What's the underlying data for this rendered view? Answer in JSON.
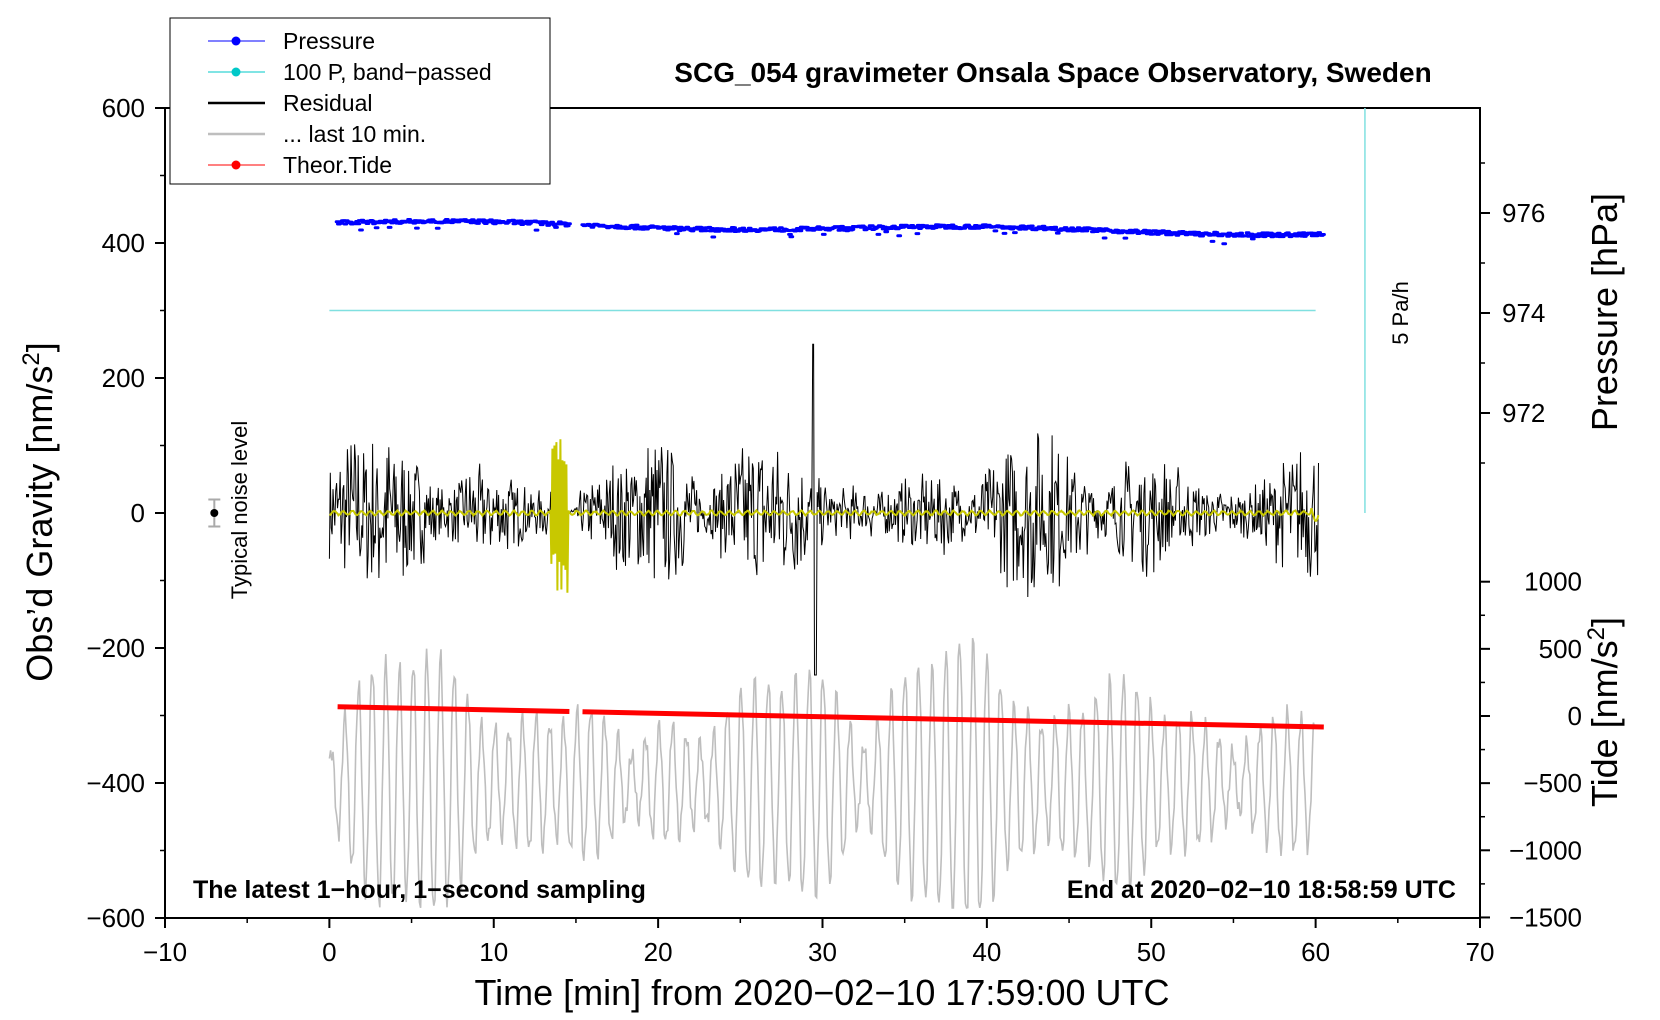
{
  "chart_data": {
    "type": "line",
    "title": "SCG_054 gravimeter Onsala Space Observatory, Sweden",
    "xlabel": "Time [min] from 2020−02−10 17:59:00 UTC",
    "ylabel_left": "Obs’d Gravity [nm/s",
    "ylabel_left_sup": "2",
    "ylabel_left_end": "]",
    "ylabel_right_pressure": "Pressure [hPa]",
    "ylabel_right_tide": "Tide [nm/s",
    "ylabel_right_tide_sup": "2",
    "ylabel_right_tide_end": "]",
    "xlim": [
      -10,
      70
    ],
    "ylim": [
      -600,
      600
    ],
    "pressure_axis": {
      "ticks": [
        976,
        974,
        972
      ]
    },
    "tide_axis": {
      "ticks": [
        1000,
        500,
        0,
        -500,
        -1000,
        -1500
      ]
    },
    "x_ticks": [
      -10,
      0,
      10,
      20,
      30,
      40,
      50,
      60,
      70
    ],
    "x_tick_labels": [
      "−10",
      "0",
      "10",
      "20",
      "30",
      "40",
      "50",
      "60",
      "70"
    ],
    "y_ticks": [
      600,
      400,
      200,
      0,
      -200,
      -400,
      -600
    ],
    "y_tick_labels": [
      "600",
      "400",
      "200",
      "0",
      "−200",
      "−400",
      "−600"
    ],
    "pressure_tick_labels": [
      "976",
      "974",
      "972"
    ],
    "tide_tick_labels": [
      "1000",
      "500",
      "0",
      "−500",
      "−1000",
      "−1500"
    ],
    "legend": [
      {
        "label": "Pressure",
        "color": "#0000ff",
        "marker": "dot"
      },
      {
        "label": "100 P, band−passed",
        "color": "#00c8c8",
        "marker": "dot"
      },
      {
        "label": "Residual",
        "color": "#000000",
        "marker": "line"
      },
      {
        "label": "... last 10 min.",
        "color": "#bebebe",
        "marker": "line"
      },
      {
        "label": "Theor.Tide",
        "color": "#ff0000",
        "marker": "dot"
      }
    ],
    "series": [
      {
        "name": "Pressure",
        "color": "#0000ff",
        "x_range": [
          0.5,
          60.5
        ],
        "gap": [
          14.6,
          15.4
        ],
        "y_start": 430,
        "y_end": 415
      },
      {
        "name": "100 P, band-passed",
        "color": "#80e0e0",
        "x_range": [
          0,
          60
        ],
        "y": 300
      },
      {
        "name": "Residual",
        "color": "#000000",
        "x_range": [
          0,
          60.2
        ],
        "amplitude_typical": 130
      },
      {
        "name": "Residual smoothed",
        "color": "#c8c800",
        "x_range": [
          0,
          60.2
        ],
        "spike_at": [
          13.5,
          14.5
        ]
      },
      {
        "name": "Theor.Tide",
        "color": "#ff0000",
        "x_range": [
          0.5,
          60.5
        ],
        "gap": [
          14.6,
          15.4
        ],
        "y_start": -287,
        "y_end": -317
      },
      {
        "name": "... last 10 min.",
        "color": "#bebebe",
        "x_range": [
          0,
          60
        ],
        "center": -400
      }
    ],
    "noise_marker": {
      "x": -7,
      "y": 0,
      "error": 20,
      "label": "Typical noise level"
    },
    "scale_bar": {
      "x": 63,
      "y_from": 0,
      "y_to": 600,
      "label": "5 Pa/h",
      "color": "#80e0e0"
    },
    "annotations": {
      "bottom_left": "The latest 1−hour, 1−second sampling",
      "bottom_right": "End at 2020−02−10 18:58:59 UTC"
    }
  }
}
